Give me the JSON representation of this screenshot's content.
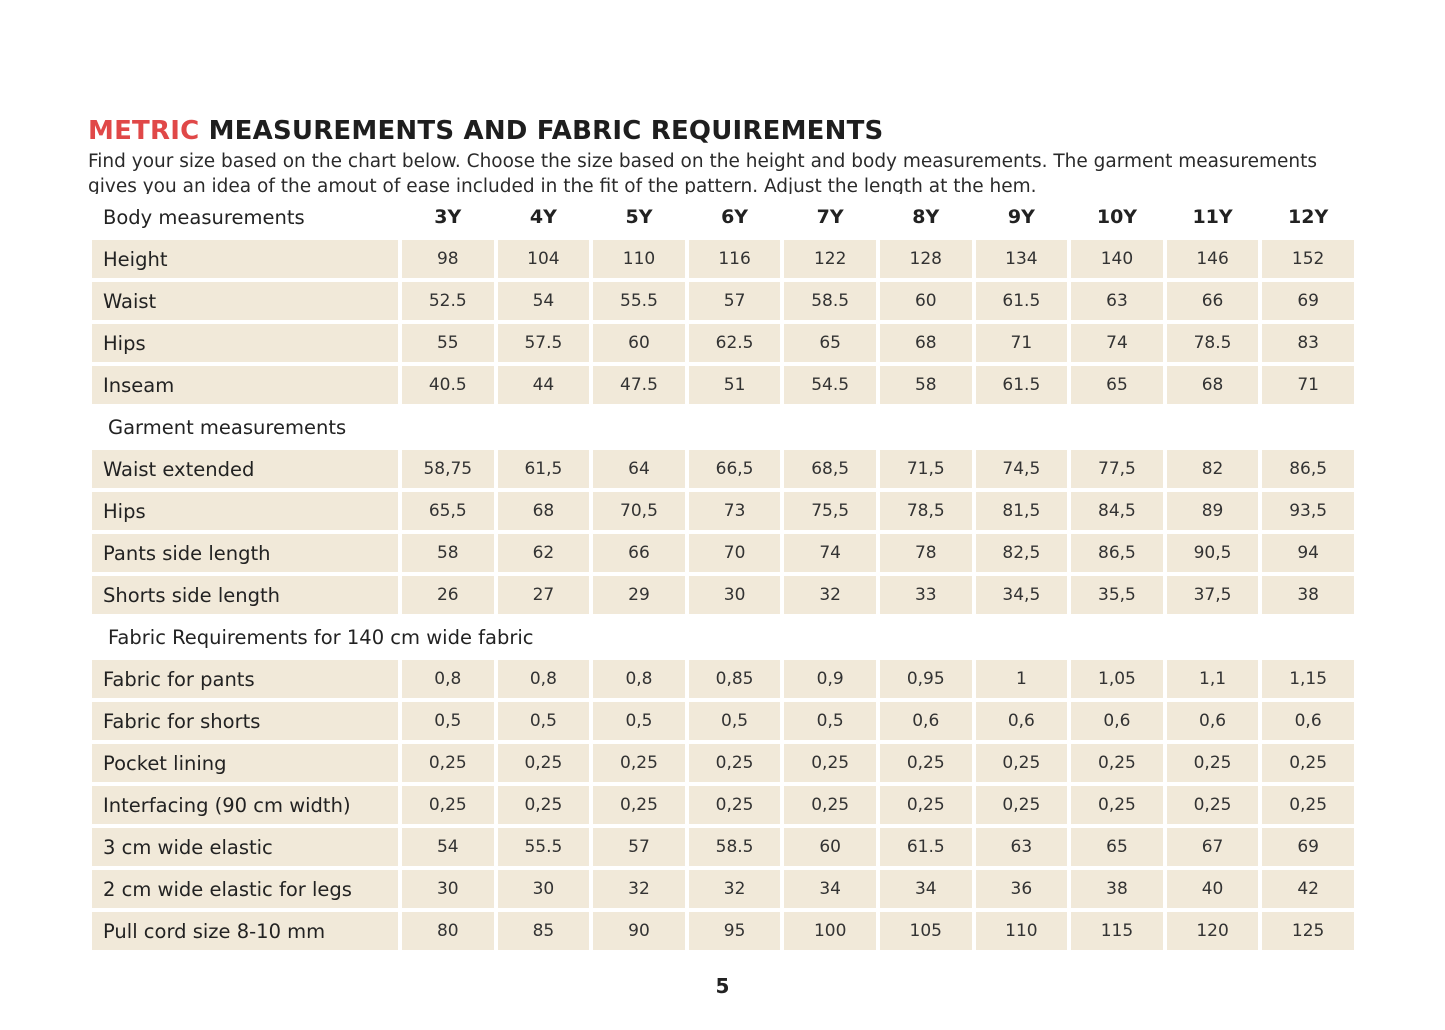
{
  "title": {
    "accent": "METRIC",
    "rest": " MEASUREMENTS AND FABRIC REQUIREMENTS"
  },
  "intro": "Find your size based on the chart below. Choose the size based on the height and body measurements. The garment measurements gives you an idea of the amout of ease included in the fit of the pattern. Adjust the length at the hem.",
  "colors": {
    "accent": "#e04848",
    "cell_background": "#f1e9d9"
  },
  "table": {
    "sizes": [
      "3Y",
      "4Y",
      "5Y",
      "6Y",
      "7Y",
      "8Y",
      "9Y",
      "10Y",
      "11Y",
      "12Y"
    ],
    "sections": [
      {
        "heading": "Body measurements",
        "header_row": true,
        "rows": [
          {
            "label": "Height",
            "values": [
              "98",
              "104",
              "110",
              "116",
              "122",
              "128",
              "134",
              "140",
              "146",
              "152"
            ]
          },
          {
            "label": "Waist",
            "values": [
              "52.5",
              "54",
              "55.5",
              "57",
              "58.5",
              "60",
              "61.5",
              "63",
              "66",
              "69"
            ]
          },
          {
            "label": "Hips",
            "values": [
              "55",
              "57.5",
              "60",
              "62.5",
              "65",
              "68",
              "71",
              "74",
              "78.5",
              "83"
            ]
          },
          {
            "label": "Inseam",
            "values": [
              "40.5",
              "44",
              "47.5",
              "51",
              "54.5",
              "58",
              "61.5",
              "65",
              "68",
              "71"
            ]
          }
        ]
      },
      {
        "heading": "Garment measurements",
        "header_row": false,
        "rows": [
          {
            "label": "Waist extended",
            "values": [
              "58,75",
              "61,5",
              "64",
              "66,5",
              "68,5",
              "71,5",
              "74,5",
              "77,5",
              "82",
              "86,5"
            ]
          },
          {
            "label": "Hips",
            "values": [
              "65,5",
              "68",
              "70,5",
              "73",
              "75,5",
              "78,5",
              "81,5",
              "84,5",
              "89",
              "93,5"
            ]
          },
          {
            "label": "Pants side length",
            "values": [
              "58",
              "62",
              "66",
              "70",
              "74",
              "78",
              "82,5",
              "86,5",
              "90,5",
              "94"
            ]
          },
          {
            "label": "Shorts side length",
            "values": [
              "26",
              "27",
              "29",
              "30",
              "32",
              "33",
              "34,5",
              "35,5",
              "37,5",
              "38"
            ]
          }
        ]
      },
      {
        "heading": "Fabric Requirements for 140 cm wide fabric",
        "header_row": false,
        "rows": [
          {
            "label": "Fabric for pants",
            "values": [
              "0,8",
              "0,8",
              "0,8",
              "0,85",
              "0,9",
              "0,95",
              "1",
              "1,05",
              "1,1",
              "1,15"
            ]
          },
          {
            "label": "Fabric for shorts",
            "values": [
              "0,5",
              "0,5",
              "0,5",
              "0,5",
              "0,5",
              "0,6",
              "0,6",
              "0,6",
              "0,6",
              "0,6"
            ]
          },
          {
            "label": "Pocket lining",
            "values": [
              "0,25",
              "0,25",
              "0,25",
              "0,25",
              "0,25",
              "0,25",
              "0,25",
              "0,25",
              "0,25",
              "0,25"
            ]
          },
          {
            "label": "Interfacing (90 cm width)",
            "values": [
              "0,25",
              "0,25",
              "0,25",
              "0,25",
              "0,25",
              "0,25",
              "0,25",
              "0,25",
              "0,25",
              "0,25"
            ]
          },
          {
            "label": "3 cm wide elastic",
            "values": [
              "54",
              "55.5",
              "57",
              "58.5",
              "60",
              "61.5",
              "63",
              "65",
              "67",
              "69"
            ]
          },
          {
            "label": "2 cm wide elastic for legs",
            "values": [
              "30",
              "30",
              "32",
              "32",
              "34",
              "34",
              "36",
              "38",
              "40",
              "42"
            ]
          },
          {
            "label": "Pull cord size 8-10 mm",
            "values": [
              "80",
              "85",
              "90",
              "95",
              "100",
              "105",
              "110",
              "115",
              "120",
              "125"
            ]
          }
        ]
      }
    ]
  },
  "page_number": "5"
}
